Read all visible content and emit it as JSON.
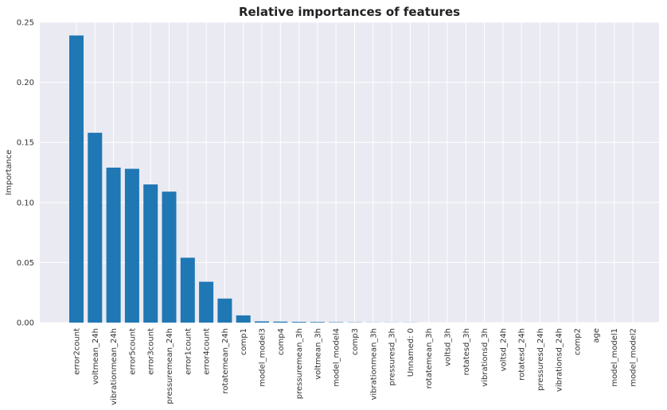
{
  "chart_data": {
    "type": "bar",
    "title": "Relative importances of features",
    "xlabel": "",
    "ylabel": "Importance",
    "ylim": [
      0,
      0.25
    ],
    "yticks": [
      "0.00",
      "0.05",
      "0.10",
      "0.15",
      "0.20",
      "0.25"
    ],
    "grid": true,
    "colors": {
      "bar": "#1f77b4",
      "plot_background": "#eaeaf2",
      "grid": "#ffffff"
    },
    "categories": [
      "error2count",
      "voltmean_24h",
      "vibrationmean_24h",
      "error5count",
      "error3count",
      "pressuremean_24h",
      "error1count",
      "error4count",
      "rotatemean_24h",
      "comp1",
      "model_model3",
      "comp4",
      "pressuremean_3h",
      "voltmean_3h",
      "model_model4",
      "comp3",
      "vibrationmean_3h",
      "pressuresd_3h",
      "Unnamed: 0",
      "rotatemean_3h",
      "voltsd_3h",
      "rotatesd_3h",
      "vibrationsd_3h",
      "voltsd_24h",
      "rotatesd_24h",
      "pressuresd_24h",
      "vibrationsd_24h",
      "comp2",
      "age",
      "model_model1",
      "model_model2"
    ],
    "values": [
      0.239,
      0.158,
      0.129,
      0.128,
      0.115,
      0.109,
      0.054,
      0.034,
      0.02,
      0.006,
      0.001,
      0.0008,
      0.0006,
      0.0005,
      0.0003,
      0.0002,
      0.0001,
      0.0001,
      0.0001,
      0.0,
      0.0,
      0.0,
      0.0,
      0.0,
      0.0,
      0.0,
      0.0,
      0.0,
      0.0,
      0.0,
      0.0
    ]
  }
}
